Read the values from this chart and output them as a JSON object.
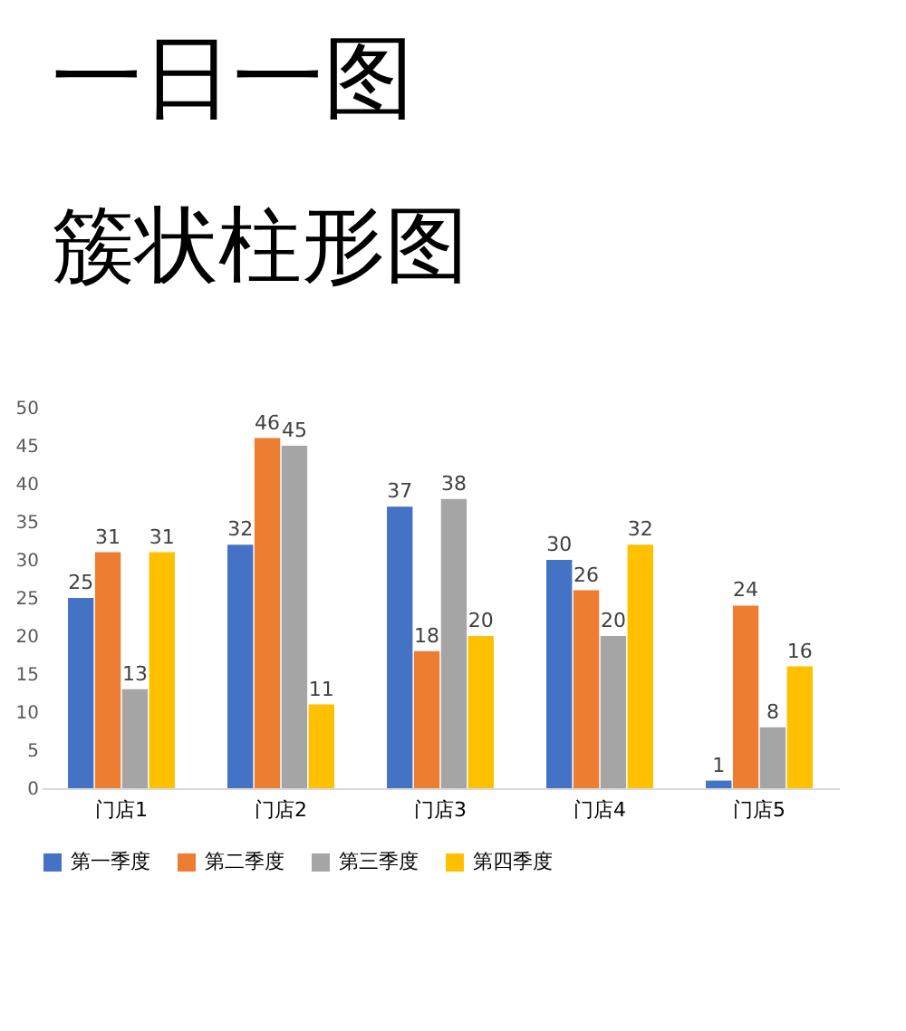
{
  "chart_data": {
    "type": "bar",
    "title": "一日一图",
    "subtitle": "簇状柱形图",
    "categories": [
      "门店1",
      "门店2",
      "门店3",
      "门店4",
      "门店5"
    ],
    "series": [
      {
        "name": "第一季度",
        "color": "#4472c4",
        "values": [
          25,
          32,
          37,
          30,
          1
        ]
      },
      {
        "name": "第二季度",
        "color": "#ed7d31",
        "values": [
          31,
          46,
          18,
          26,
          24
        ]
      },
      {
        "name": "第三季度",
        "color": "#a5a5a5",
        "values": [
          13,
          45,
          38,
          20,
          8
        ]
      },
      {
        "name": "第四季度",
        "color": "#ffc000",
        "values": [
          31,
          11,
          20,
          32,
          16
        ]
      }
    ],
    "ylim": [
      0,
      50
    ],
    "yticks": [
      0,
      5,
      10,
      15,
      20,
      25,
      30,
      35,
      40,
      45,
      50
    ],
    "data_labels": true,
    "grid": false,
    "legend": "bottom"
  }
}
